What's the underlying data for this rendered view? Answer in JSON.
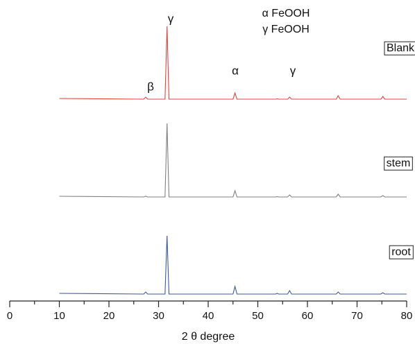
{
  "chart_data": {
    "type": "line",
    "x_label": "2 θ degree",
    "x": [
      10,
      27.0,
      27.4,
      27.8,
      31.3,
      31.7,
      32.1,
      45.0,
      45.4,
      45.8,
      53.6,
      53.9,
      54.2,
      56.0,
      56.4,
      56.8,
      65.8,
      66.2,
      66.6,
      74.8,
      75.2,
      75.6,
      80
    ],
    "series": [
      {
        "name": "Blank",
        "color": "#e8403a",
        "values": [
          2,
          1,
          4,
          1,
          1,
          106,
          1,
          1,
          10,
          1,
          1,
          1.5,
          1,
          1,
          4,
          1,
          1,
          6,
          1,
          1,
          5,
          1,
          1
        ]
      },
      {
        "name": "stem",
        "color": "#808080",
        "values": [
          2,
          1,
          2,
          1,
          1,
          107,
          1,
          1,
          10,
          1,
          1,
          1.5,
          1,
          1,
          4,
          1,
          1,
          5,
          1,
          1,
          3,
          1,
          1
        ]
      },
      {
        "name": "root",
        "color": "#3a56a8",
        "values": [
          2,
          1,
          4,
          1,
          1,
          85,
          1,
          1,
          12,
          1,
          1,
          2,
          1,
          1,
          6,
          1,
          1,
          4,
          1,
          1,
          3,
          1,
          1
        ]
      }
    ],
    "annotations": [
      "β",
      "γ",
      "α",
      "γ"
    ],
    "phase_labels": [
      "α FeOOH",
      "γ FeOOH"
    ],
    "xlim": [
      0,
      80
    ],
    "xticks": [
      0,
      10,
      20,
      30,
      40,
      50,
      60,
      70,
      80
    ],
    "xminorticks": [
      5,
      15,
      25,
      35,
      45,
      55,
      65,
      75
    ]
  }
}
